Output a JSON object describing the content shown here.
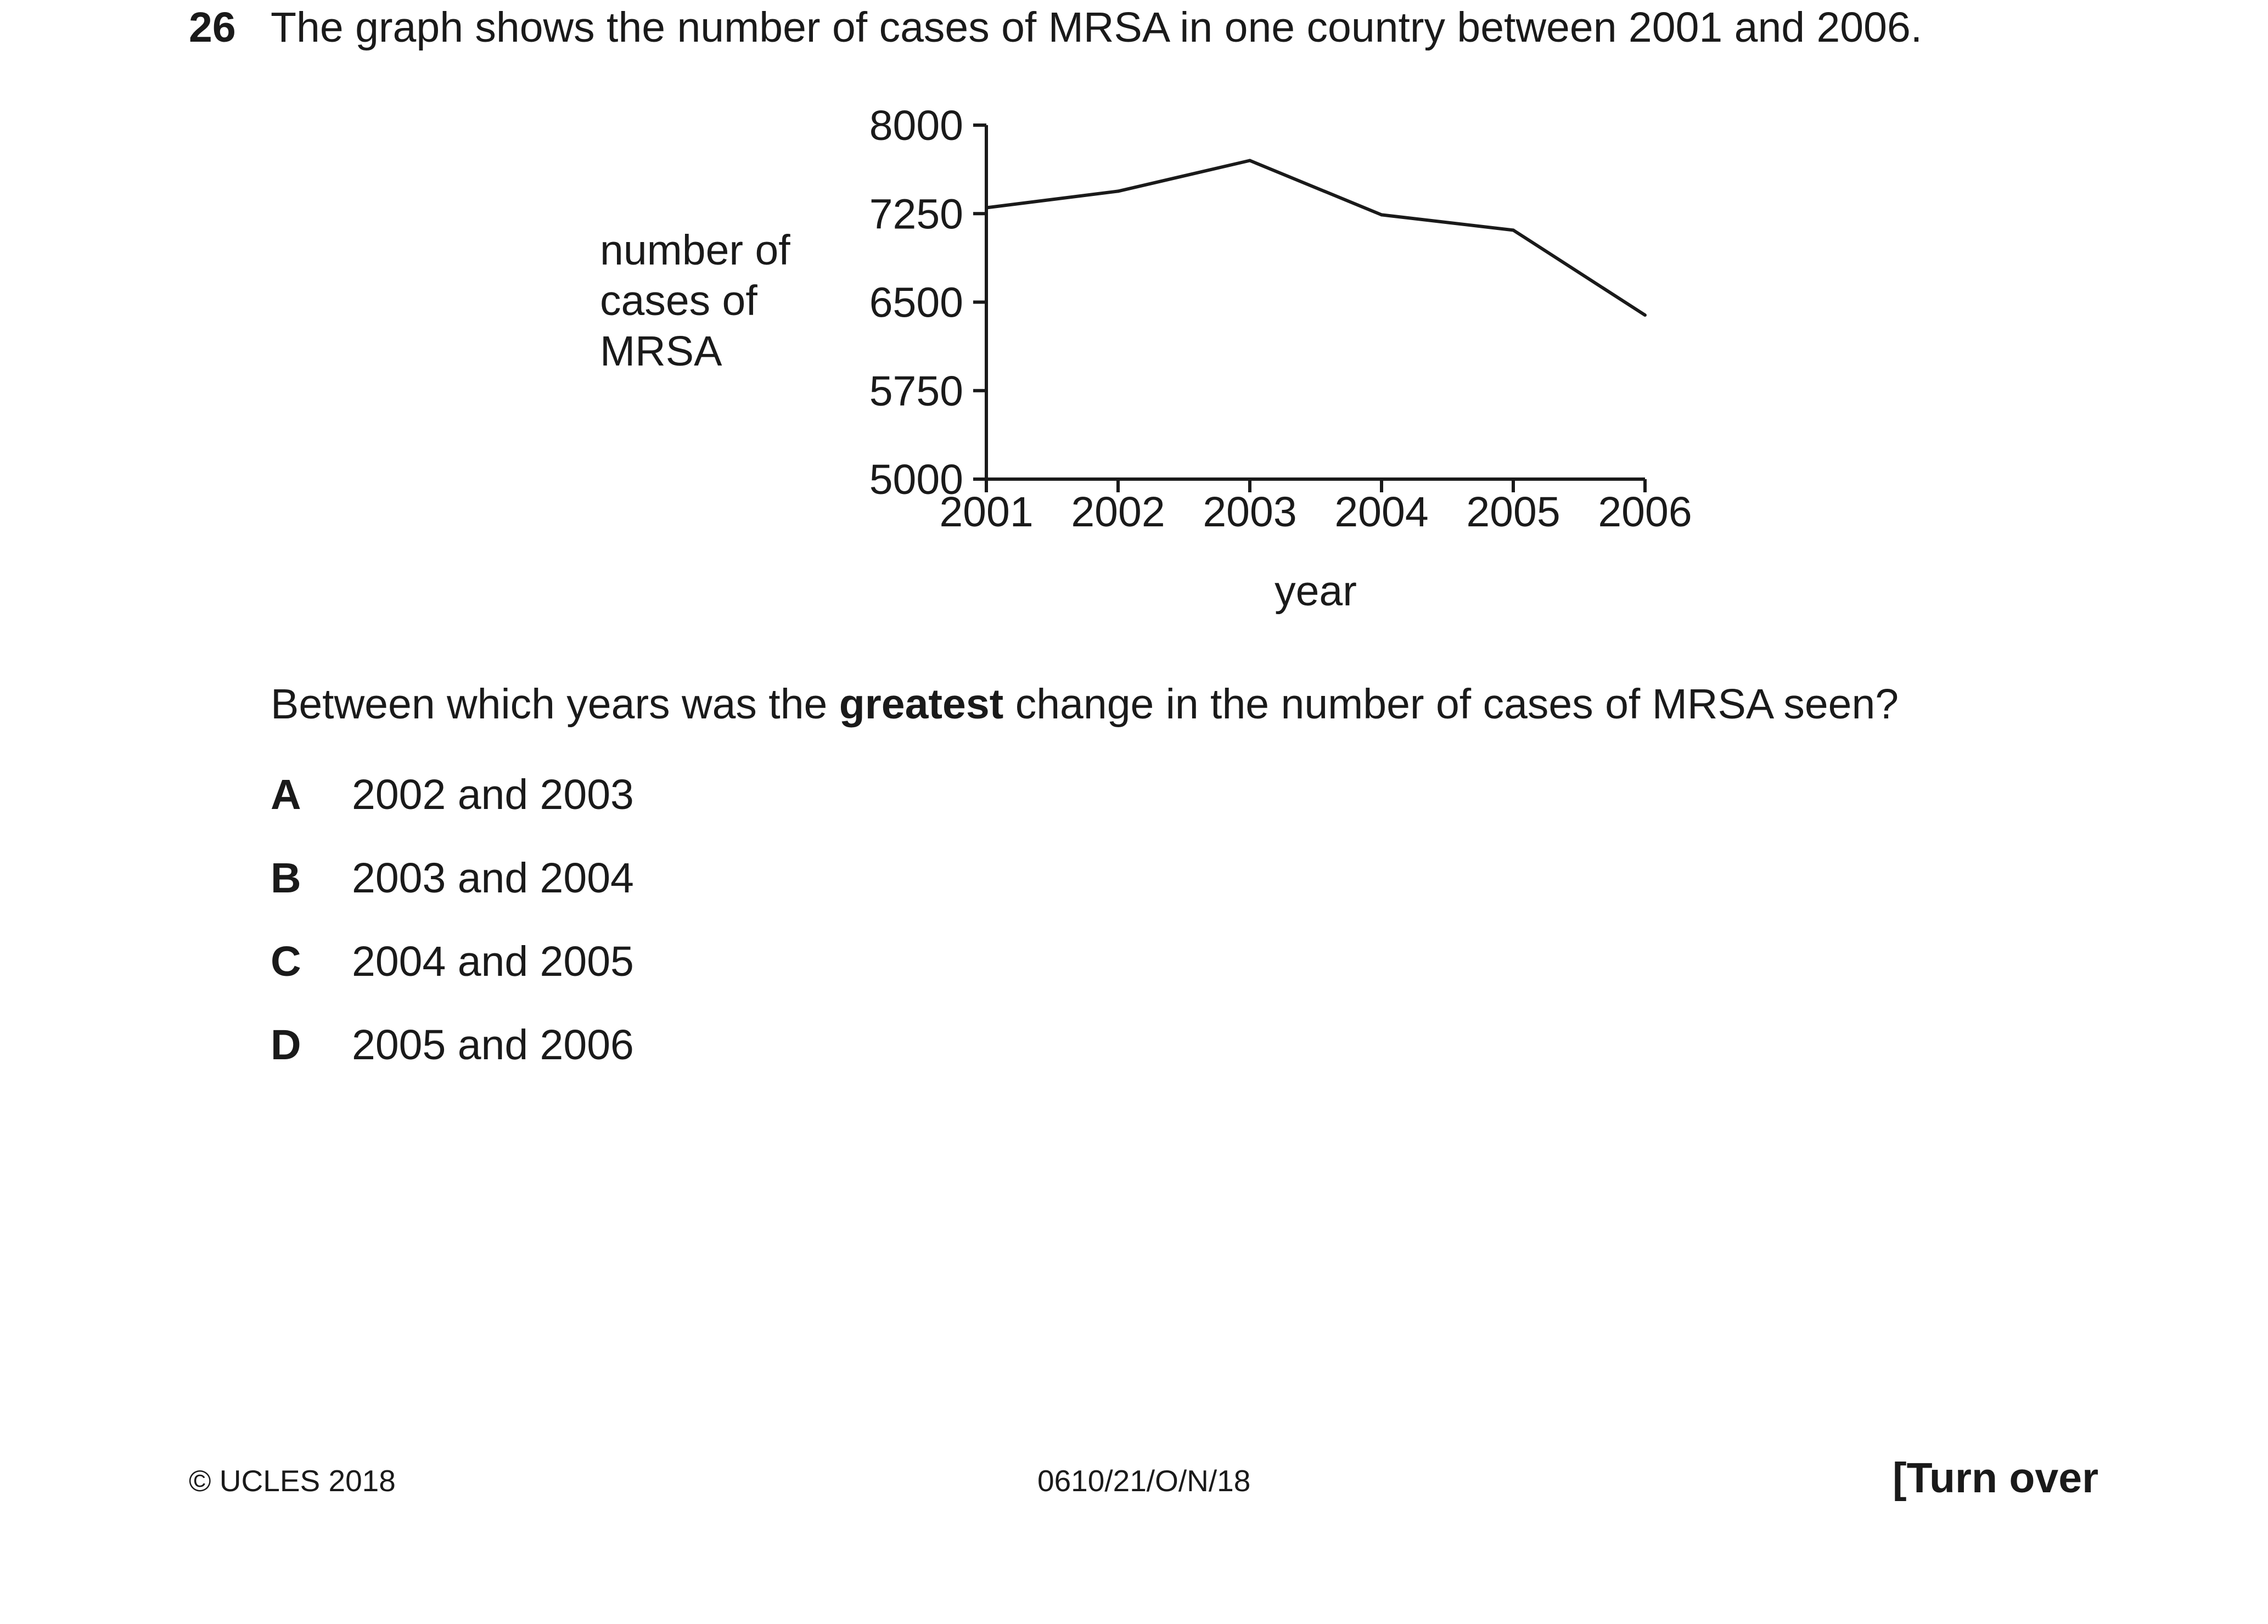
{
  "question": {
    "number": "26",
    "text": "The graph shows the number of cases of MRSA in one country between 2001 and 2006.",
    "prompt_before": "Between which years was the ",
    "prompt_bold": "greatest",
    "prompt_after": " change in the number of cases of MRSA seen?",
    "options": [
      {
        "letter": "A",
        "text": "2002 and 2003"
      },
      {
        "letter": "B",
        "text": "2003 and 2004"
      },
      {
        "letter": "C",
        "text": "2004 and 2005"
      },
      {
        "letter": "D",
        "text": "2005 and 2006"
      }
    ]
  },
  "chart_data": {
    "type": "line",
    "title": "",
    "xlabel": "year",
    "ylabel": "number of\ncases of\nMRSA",
    "x": [
      "2001",
      "2002",
      "2003",
      "2004",
      "2005",
      "2006"
    ],
    "series": [
      {
        "values": [
          7300,
          7440,
          7700,
          7240,
          7110,
          6390
        ]
      }
    ],
    "ylim": [
      5000,
      8000
    ],
    "yticks": [
      5000,
      5750,
      6500,
      7250,
      8000
    ],
    "ytick_labels": [
      "5000",
      "5750",
      "6500",
      "7250",
      "8000"
    ],
    "grid": false,
    "colors": {
      "line": "#1a1a1a",
      "axis": "#1a1a1a"
    }
  },
  "footer": {
    "copyright": "© UCLES 2018",
    "code": "0610/21/O/N/18",
    "turn_over": "[Turn over"
  }
}
